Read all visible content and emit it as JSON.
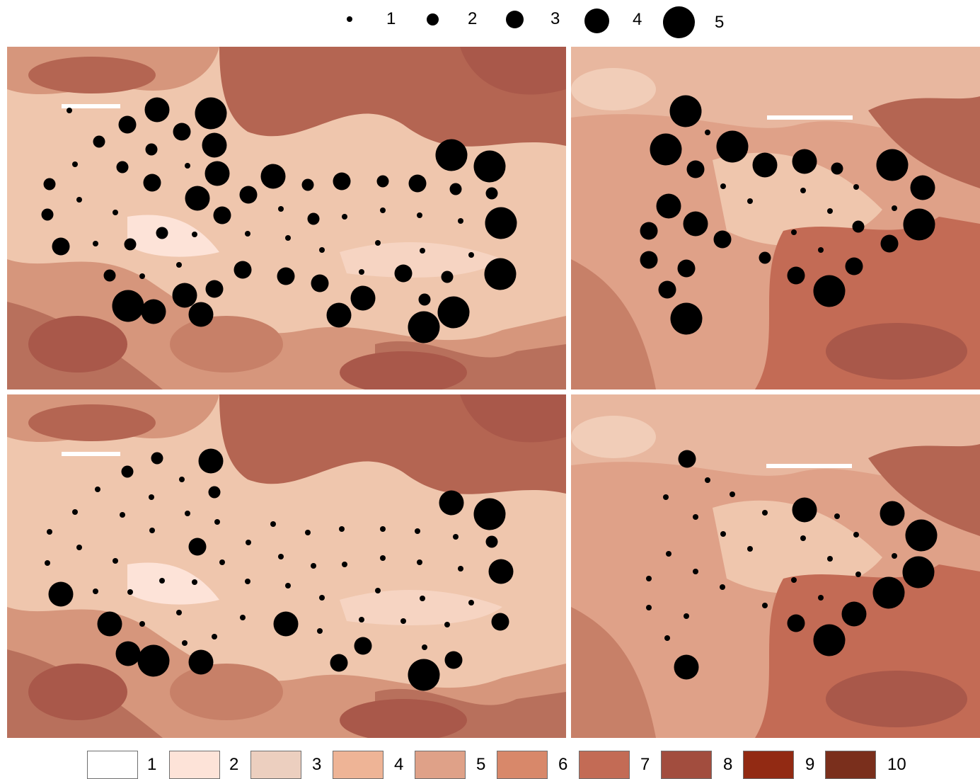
{
  "size_legend": [
    {
      "label": "1",
      "size": 1
    },
    {
      "label": "2",
      "size": 2
    },
    {
      "label": "3",
      "size": 3
    },
    {
      "label": "4",
      "size": 4
    },
    {
      "label": "5",
      "size": 5
    }
  ],
  "color_legend": [
    {
      "label": "1",
      "color": "#ffffff"
    },
    {
      "label": "2",
      "color": "#fde3d8"
    },
    {
      "label": "3",
      "color": "#eccfbf"
    },
    {
      "label": "4",
      "color": "#eeb496"
    },
    {
      "label": "5",
      "color": "#dfa188"
    },
    {
      "label": "6",
      "color": "#d8886a"
    },
    {
      "label": "7",
      "color": "#c36b55"
    },
    {
      "label": "8",
      "color": "#a24d3e"
    },
    {
      "label": "9",
      "color": "#922a13"
    },
    {
      "label": "10",
      "color": "#7a2f1c"
    }
  ],
  "panels": [
    {
      "id": "top-left",
      "points": []
    },
    {
      "id": "top-right",
      "points": []
    },
    {
      "id": "bottom-left",
      "points": []
    },
    {
      "id": "bottom-right",
      "points": []
    }
  ]
}
